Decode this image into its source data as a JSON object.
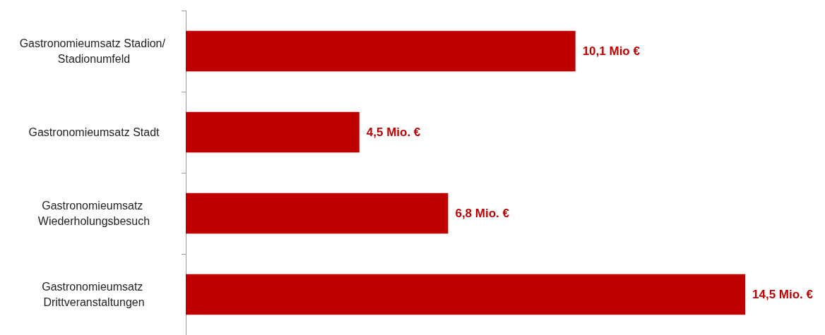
{
  "chart_data": {
    "type": "bar",
    "orientation": "horizontal",
    "categories": [
      "Gastronomieumsatz Stadion/ Stadionumfeld",
      "Gastronomieumsatz Stadt",
      "Gastronomieumsatz Wiederholungsbesuch",
      "Gastronomieumsatz Drittveranstaltungen"
    ],
    "values": [
      10.1,
      4.5,
      6.8,
      14.5
    ],
    "color": "#c00000",
    "value_labels": [
      "10,1 Mio €",
      "4,5 Mio. €",
      "6,8 Mio. €",
      "14,5 Mio. €"
    ],
    "grid": false
  }
}
